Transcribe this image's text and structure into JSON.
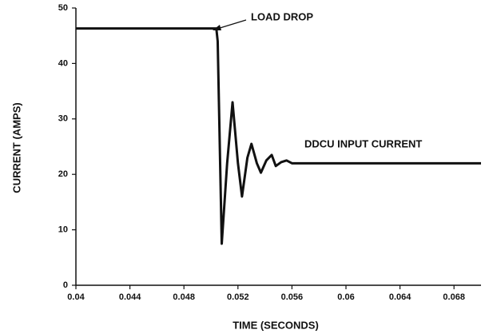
{
  "chart_data": {
    "type": "line",
    "xlabel": "TIME (SECONDS)",
    "ylabel": "CURRENT (AMPS)",
    "annotations": [
      "LOAD DROP",
      "DDCU INPUT CURRENT"
    ],
    "x": [
      0.04,
      0.0504,
      0.0505,
      0.0508,
      0.0512,
      0.0516,
      0.052,
      0.0523,
      0.0527,
      0.053,
      0.0534,
      0.0537,
      0.0541,
      0.0545,
      0.0548,
      0.0552,
      0.0556,
      0.056,
      0.058,
      0.06,
      0.062,
      0.064,
      0.066,
      0.068,
      0.07
    ],
    "series": [
      {
        "name": "DDCU INPUT CURRENT",
        "color": "#111111",
        "values": [
          46.3,
          46.3,
          44,
          7.5,
          22,
          33,
          22,
          16,
          23,
          25.5,
          22,
          20.3,
          22.5,
          23.5,
          21.5,
          22.2,
          22.5,
          22,
          22,
          22,
          22,
          22,
          22,
          22,
          22
        ]
      }
    ],
    "xlim": [
      0.04,
      0.07
    ],
    "xticks": [
      0.04,
      0.044,
      0.048,
      0.052,
      0.056,
      0.06,
      0.064,
      0.068
    ],
    "ylim": [
      0,
      50
    ],
    "yticks": [
      0,
      10,
      20,
      30,
      40,
      50
    ],
    "grid": false
  }
}
